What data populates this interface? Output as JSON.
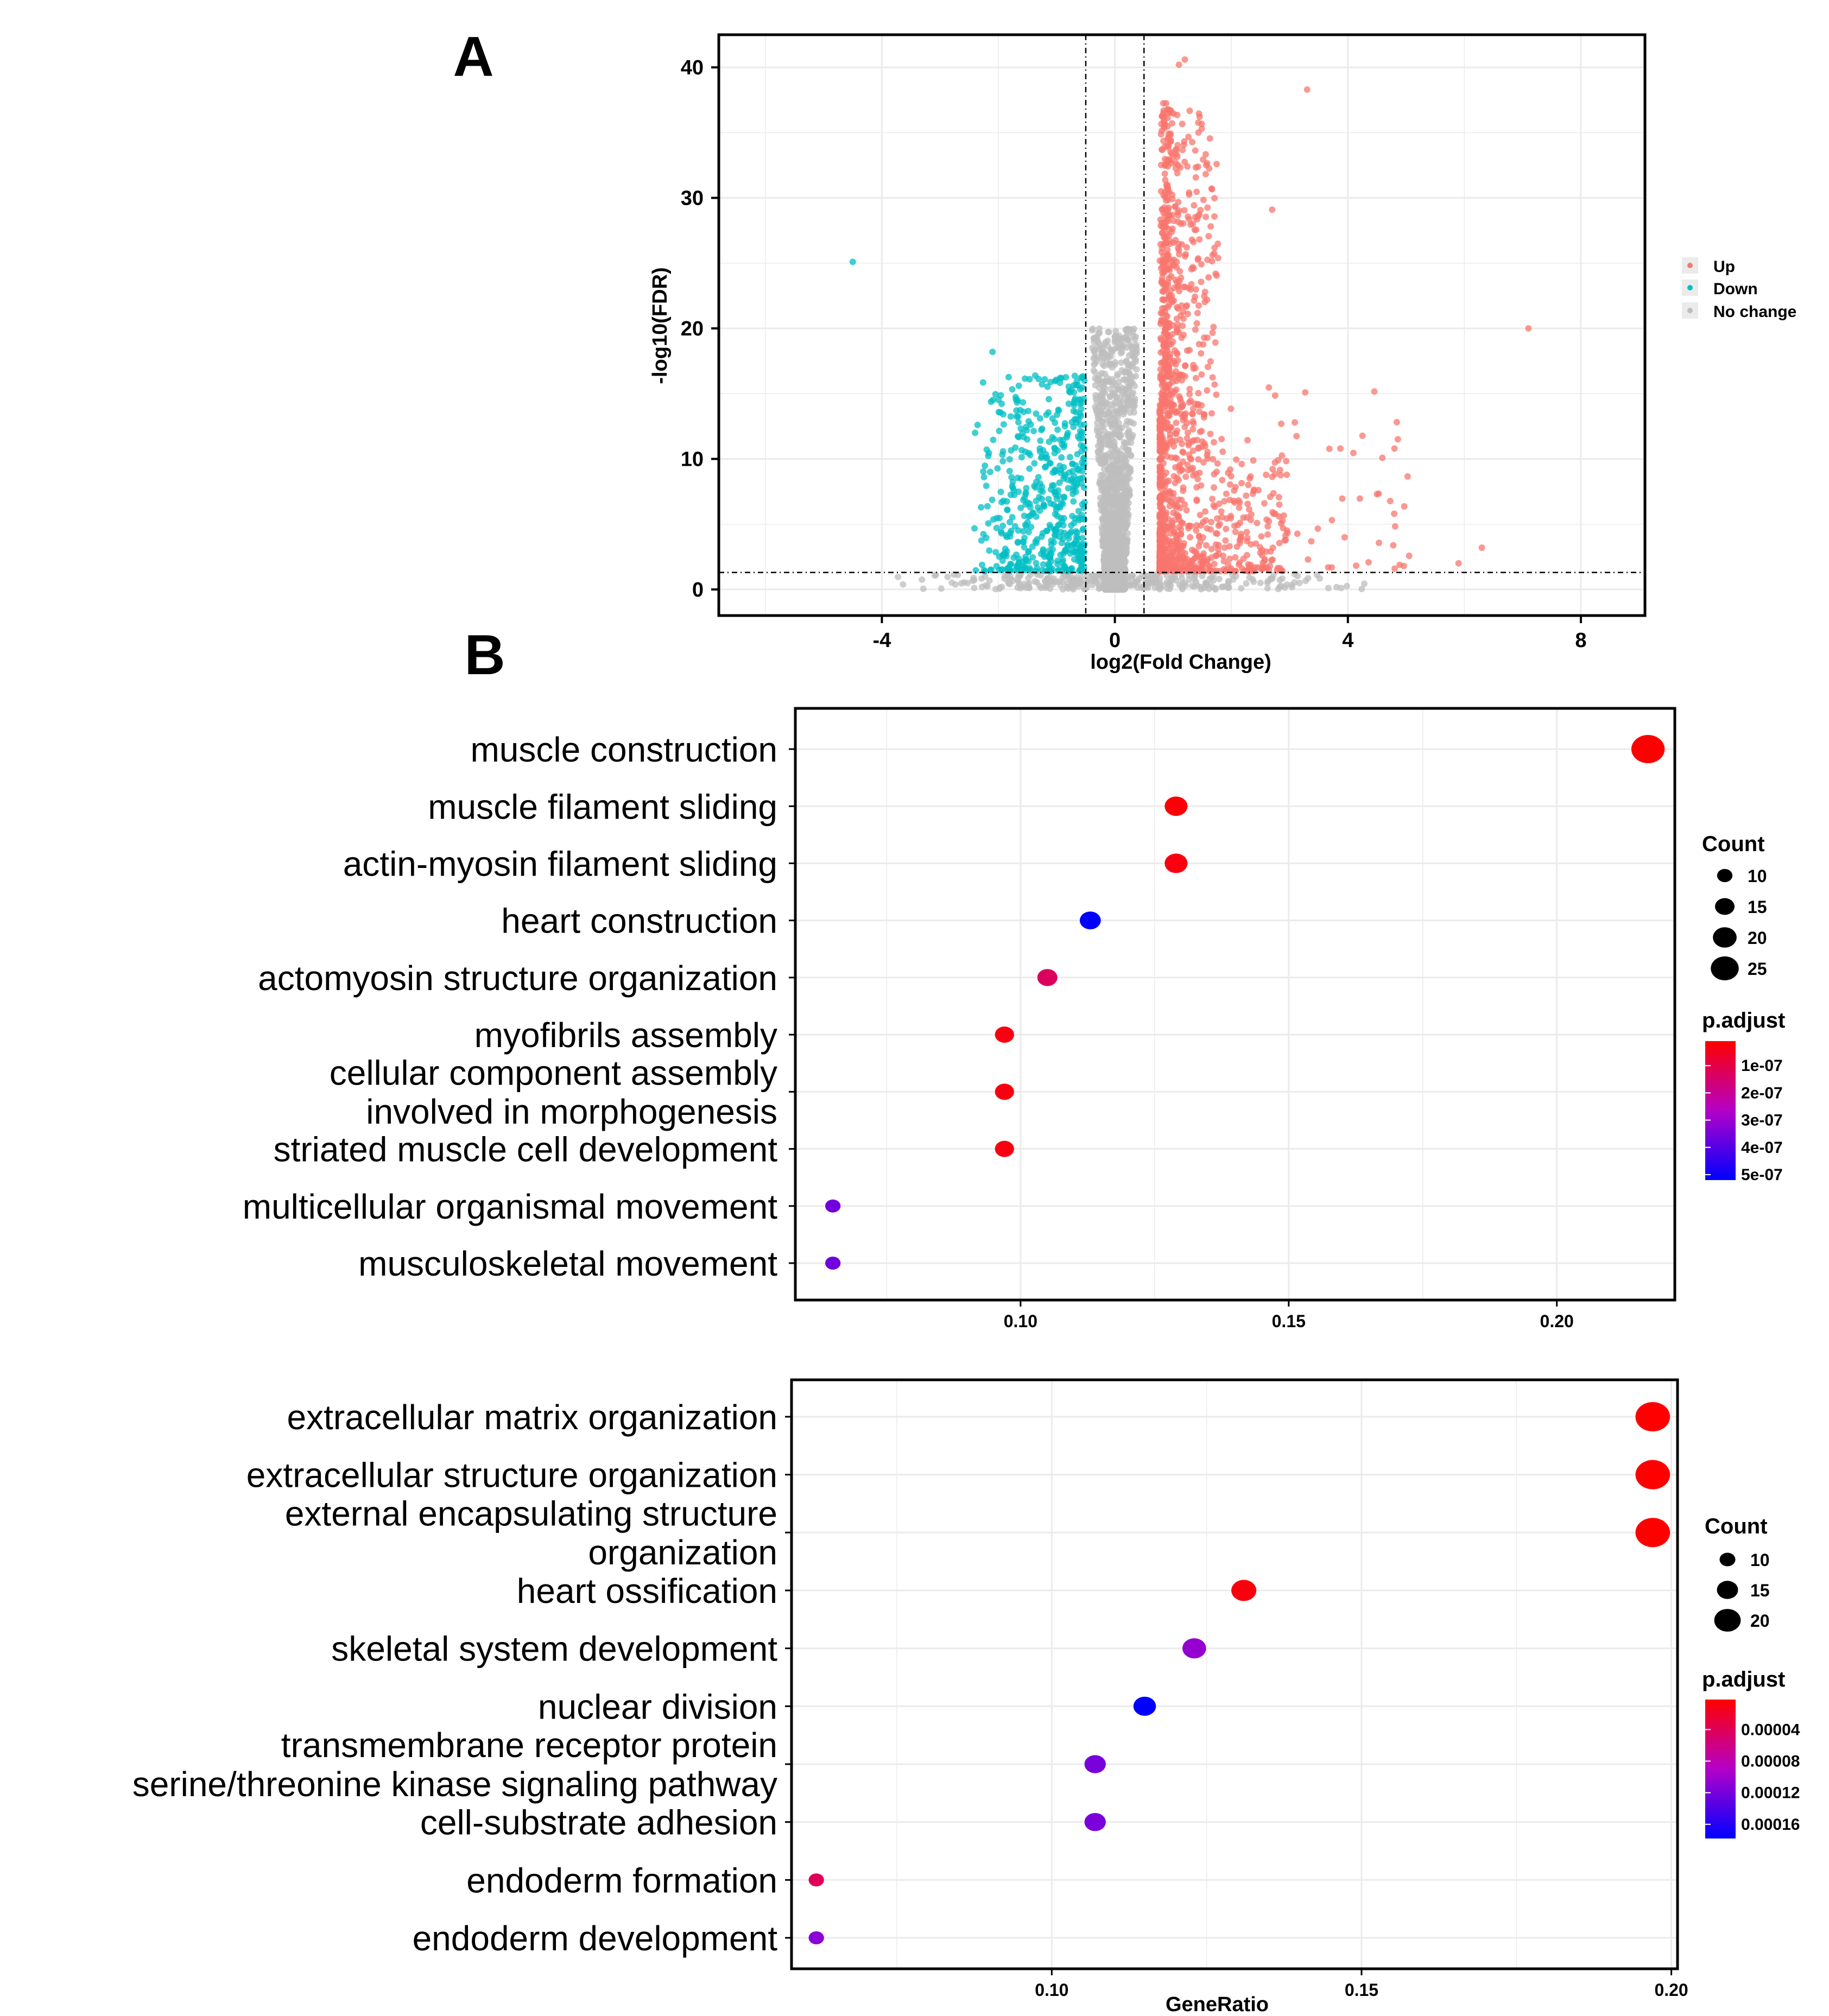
{
  "panels": {
    "a_label": "A",
    "b_label": "B"
  },
  "volcano": {
    "seed": 20240601
  },
  "chart_data": [
    {
      "type": "scatter",
      "title": "",
      "xlabel": "log2(Fold Change)",
      "ylabel": "-log10(FDR)",
      "xlim": [
        -6.8,
        9.1
      ],
      "ylim": [
        -2.0,
        42.5
      ],
      "x_ticks": [
        -4,
        0,
        4,
        8
      ],
      "y_ticks": [
        0,
        10,
        20,
        30,
        40
      ],
      "grid": true,
      "thresholds": {
        "log2fc": [
          -0.5,
          0.5
        ],
        "neg_log10_fdr": 1.3
      },
      "legend": {
        "placement": "right",
        "entries": [
          {
            "label": "Up",
            "color": "#f8766d"
          },
          {
            "label": "Down",
            "color": "#00bfc4"
          },
          {
            "label": "No change",
            "color": "#bdbdbd"
          }
        ]
      },
      "highlighted_points": [
        {
          "x": -4.5,
          "y": 25.1,
          "group": "Down"
        },
        {
          "x": 3.3,
          "y": 38.3,
          "group": "Up"
        },
        {
          "x": 7.1,
          "y": 20.0,
          "group": "Up"
        },
        {
          "x": 1.2,
          "y": 40.6,
          "group": "Up"
        },
        {
          "x": 1.1,
          "y": 40.2,
          "group": "Up"
        },
        {
          "x": 2.7,
          "y": 29.1,
          "group": "Up"
        },
        {
          "x": 4.8,
          "y": 10.8,
          "group": "Up"
        },
        {
          "x": 4.5,
          "y": 7.3,
          "group": "Up"
        },
        {
          "x": 6.3,
          "y": 3.2,
          "group": "Up"
        },
        {
          "x": 5.9,
          "y": 2.0,
          "group": "Up"
        },
        {
          "x": -2.1,
          "y": 18.2,
          "group": "Down"
        },
        {
          "x": -2.4,
          "y": 12.0,
          "group": "Down"
        }
      ]
    },
    {
      "type": "scatter",
      "title": "",
      "xlabel": "",
      "ylabel": "",
      "xlim": [
        0.058,
        0.222
      ],
      "x_ticks": [
        0.1,
        0.15,
        0.2
      ],
      "x_tick_labels": [
        "0.10",
        "0.15",
        "0.20"
      ],
      "grid": true,
      "categories": [
        [
          "muscle construction"
        ],
        [
          "muscle filament sliding"
        ],
        [
          "actin-myosin filament sliding"
        ],
        [
          "heart construction"
        ],
        [
          "actomyosin structure organization"
        ],
        [
          "myofibrils assembly"
        ],
        [
          "cellular component assembly",
          "involved in morphogenesis"
        ],
        [
          "striated muscle cell development"
        ],
        [
          "multicellular organismal movement"
        ],
        [
          "musculoskeletal movement"
        ]
      ],
      "gene_ratio": [
        0.217,
        0.129,
        0.129,
        0.113,
        0.105,
        0.097,
        0.097,
        0.097,
        0.065,
        0.065
      ],
      "count": [
        27,
        16,
        16,
        14,
        13,
        12,
        12,
        12,
        8,
        8
      ],
      "p_adjust": [
        1e-08,
        2e-08,
        3e-08,
        5.2e-07,
        1.3e-07,
        3e-08,
        3e-08,
        3e-08,
        3.6e-07,
        3.6e-07
      ],
      "legend": {
        "placement": "right",
        "count_title": "Count",
        "count_breaks": [
          10,
          15,
          20,
          25
        ],
        "count_labels": [
          "10",
          "15",
          "20",
          "25"
        ],
        "color_title": "p.adjust",
        "color_min": 1e-08,
        "color_max": 5.2e-07,
        "color_breaks": [
          1e-07,
          2e-07,
          3e-07,
          4e-07,
          5e-07
        ],
        "color_labels": [
          "1e-07",
          "2e-07",
          "3e-07",
          "4e-07",
          "5e-07"
        ],
        "low_color": "#ff0000",
        "high_color": "#0000ff"
      }
    },
    {
      "type": "scatter",
      "title": "",
      "xlabel": "GeneRatio",
      "ylabel": "",
      "xlim": [
        0.058,
        0.201
      ],
      "x_ticks": [
        0.1,
        0.15,
        0.2
      ],
      "x_tick_labels": [
        "0.10",
        "0.15",
        "0.20"
      ],
      "grid": true,
      "categories": [
        [
          "extracellular matrix organization"
        ],
        [
          "extracellular structure organization"
        ],
        [
          "external encapsulating structure",
          "organization"
        ],
        [
          "heart ossification"
        ],
        [
          "skeletal system development"
        ],
        [
          "nuclear division"
        ],
        [
          "transmembrane receptor protein",
          "serine/threonine kinase signaling pathway"
        ],
        [
          "cell-substrate adhesion"
        ],
        [
          "endoderm formation"
        ],
        [
          "endoderm development"
        ]
      ],
      "gene_ratio": [
        0.197,
        0.197,
        0.197,
        0.131,
        0.123,
        0.115,
        0.107,
        0.107,
        0.062,
        0.062
      ],
      "count": [
        24,
        24,
        24,
        16,
        15,
        14,
        13,
        13,
        8,
        8
      ],
      "p_adjust": [
        2e-06,
        2e-06,
        2e-06,
        8e-06,
        0.000105,
        0.000178,
        0.00012,
        0.000118,
        4e-05,
        0.00011
      ],
      "legend": {
        "placement": "right",
        "count_title": "Count",
        "count_breaks": [
          10,
          15,
          20
        ],
        "count_labels": [
          "10",
          "15",
          "20"
        ],
        "color_title": "p.adjust",
        "color_min": 2e-06,
        "color_max": 0.000178,
        "color_breaks": [
          4e-05,
          8e-05,
          0.00012,
          0.00016
        ],
        "color_labels": [
          "0.00004",
          "0.00008",
          "0.00012",
          "0.00016"
        ],
        "low_color": "#ff0000",
        "high_color": "#0000ff"
      }
    }
  ]
}
